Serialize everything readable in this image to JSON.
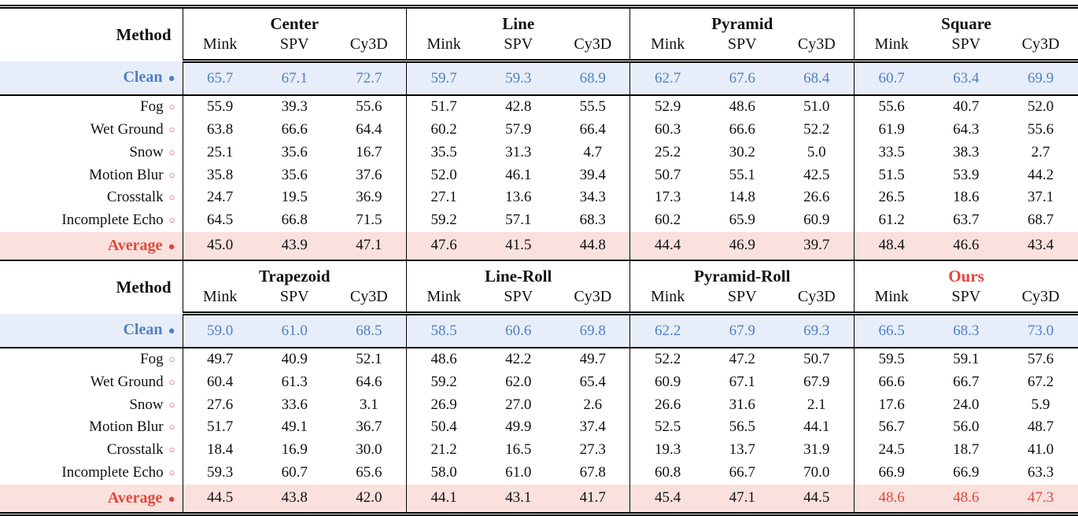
{
  "colors": {
    "blue_text": "#4e80c4",
    "blue_row_bg": "#e8eef9",
    "red_text": "#e2473c",
    "red_row_bg": "#fae1dd",
    "rule_color": "#000000",
    "text_color": "#111111"
  },
  "markers": {
    "filled_circle": "●",
    "open_circle": "○"
  },
  "method_header": "Method",
  "subcolumns": [
    "Mink",
    "SPV",
    "Cy3D"
  ],
  "tables": [
    {
      "groups": [
        {
          "name": "Center",
          "highlight": false
        },
        {
          "name": "Line",
          "highlight": false
        },
        {
          "name": "Pyramid",
          "highlight": false
        },
        {
          "name": "Square",
          "highlight": false
        }
      ],
      "rows": [
        {
          "label": "Clean",
          "kind": "clean",
          "marker": "filled_circle",
          "values": [
            "65.7",
            "67.1",
            "72.7",
            "59.7",
            "59.3",
            "68.9",
            "62.7",
            "67.6",
            "68.4",
            "60.7",
            "63.4",
            "69.9"
          ]
        },
        {
          "label": "Fog",
          "kind": "corruption",
          "marker": "open_circle",
          "values": [
            "55.9",
            "39.3",
            "55.6",
            "51.7",
            "42.8",
            "55.5",
            "52.9",
            "48.6",
            "51.0",
            "55.6",
            "40.7",
            "52.0"
          ]
        },
        {
          "label": "Wet Ground",
          "kind": "corruption",
          "marker": "open_circle",
          "values": [
            "63.8",
            "66.6",
            "64.4",
            "60.2",
            "57.9",
            "66.4",
            "60.3",
            "66.6",
            "52.2",
            "61.9",
            "64.3",
            "55.6"
          ]
        },
        {
          "label": "Snow",
          "kind": "corruption",
          "marker": "open_circle",
          "values": [
            "25.1",
            "35.6",
            "16.7",
            "35.5",
            "31.3",
            "4.7",
            "25.2",
            "30.2",
            "5.0",
            "33.5",
            "38.3",
            "2.7"
          ]
        },
        {
          "label": "Motion Blur",
          "kind": "corruption",
          "marker": "open_circle",
          "values": [
            "35.8",
            "35.6",
            "37.6",
            "52.0",
            "46.1",
            "39.4",
            "50.7",
            "55.1",
            "42.5",
            "51.5",
            "53.9",
            "44.2"
          ]
        },
        {
          "label": "Crosstalk",
          "kind": "corruption",
          "marker": "open_circle",
          "values": [
            "24.7",
            "19.5",
            "36.9",
            "27.1",
            "13.6",
            "34.3",
            "17.3",
            "14.8",
            "26.6",
            "26.5",
            "18.6",
            "37.1"
          ]
        },
        {
          "label": "Incomplete Echo",
          "kind": "corruption",
          "marker": "open_circle",
          "values": [
            "64.5",
            "66.8",
            "71.5",
            "59.2",
            "57.1",
            "68.3",
            "60.2",
            "65.9",
            "60.9",
            "61.2",
            "63.7",
            "68.7"
          ]
        },
        {
          "label": "Average",
          "kind": "average",
          "marker": "filled_circle",
          "values": [
            "45.0",
            "43.9",
            "47.1",
            "47.6",
            "41.5",
            "44.8",
            "44.4",
            "46.9",
            "39.7",
            "48.4",
            "46.6",
            "43.4"
          ],
          "red_value_indices": []
        }
      ]
    },
    {
      "groups": [
        {
          "name": "Trapezoid",
          "highlight": false
        },
        {
          "name": "Line-Roll",
          "highlight": false
        },
        {
          "name": "Pyramid-Roll",
          "highlight": false
        },
        {
          "name": "Ours",
          "highlight": true
        }
      ],
      "rows": [
        {
          "label": "Clean",
          "kind": "clean",
          "marker": "filled_circle",
          "values": [
            "59.0",
            "61.0",
            "68.5",
            "58.5",
            "60.6",
            "69.8",
            "62.2",
            "67.9",
            "69.3",
            "66.5",
            "68.3",
            "73.0"
          ]
        },
        {
          "label": "Fog",
          "kind": "corruption",
          "marker": "open_circle",
          "values": [
            "49.7",
            "40.9",
            "52.1",
            "48.6",
            "42.2",
            "49.7",
            "52.2",
            "47.2",
            "50.7",
            "59.5",
            "59.1",
            "57.6"
          ]
        },
        {
          "label": "Wet Ground",
          "kind": "corruption",
          "marker": "open_circle",
          "values": [
            "60.4",
            "61.3",
            "64.6",
            "59.2",
            "62.0",
            "65.4",
            "60.9",
            "67.1",
            "67.9",
            "66.6",
            "66.7",
            "67.2"
          ]
        },
        {
          "label": "Snow",
          "kind": "corruption",
          "marker": "open_circle",
          "values": [
            "27.6",
            "33.6",
            "3.1",
            "26.9",
            "27.0",
            "2.6",
            "26.6",
            "31.6",
            "2.1",
            "17.6",
            "24.0",
            "5.9"
          ]
        },
        {
          "label": "Motion Blur",
          "kind": "corruption",
          "marker": "open_circle",
          "values": [
            "51.7",
            "49.1",
            "36.7",
            "50.4",
            "49.9",
            "37.4",
            "52.5",
            "56.5",
            "44.1",
            "56.7",
            "56.0",
            "48.7"
          ]
        },
        {
          "label": "Crosstalk",
          "kind": "corruption",
          "marker": "open_circle",
          "values": [
            "18.4",
            "16.9",
            "30.0",
            "21.2",
            "16.5",
            "27.3",
            "19.3",
            "13.7",
            "31.9",
            "24.5",
            "18.7",
            "41.0"
          ]
        },
        {
          "label": "Incomplete Echo",
          "kind": "corruption",
          "marker": "open_circle",
          "values": [
            "59.3",
            "60.7",
            "65.6",
            "58.0",
            "61.0",
            "67.8",
            "60.8",
            "66.7",
            "70.0",
            "66.9",
            "66.9",
            "63.3"
          ]
        },
        {
          "label": "Average",
          "kind": "average",
          "marker": "filled_circle",
          "values": [
            "44.5",
            "43.8",
            "42.0",
            "44.1",
            "43.1",
            "41.7",
            "45.4",
            "47.1",
            "44.5",
            "48.6",
            "48.6",
            "47.3"
          ],
          "red_value_indices": [
            9,
            10,
            11
          ]
        }
      ]
    }
  ]
}
